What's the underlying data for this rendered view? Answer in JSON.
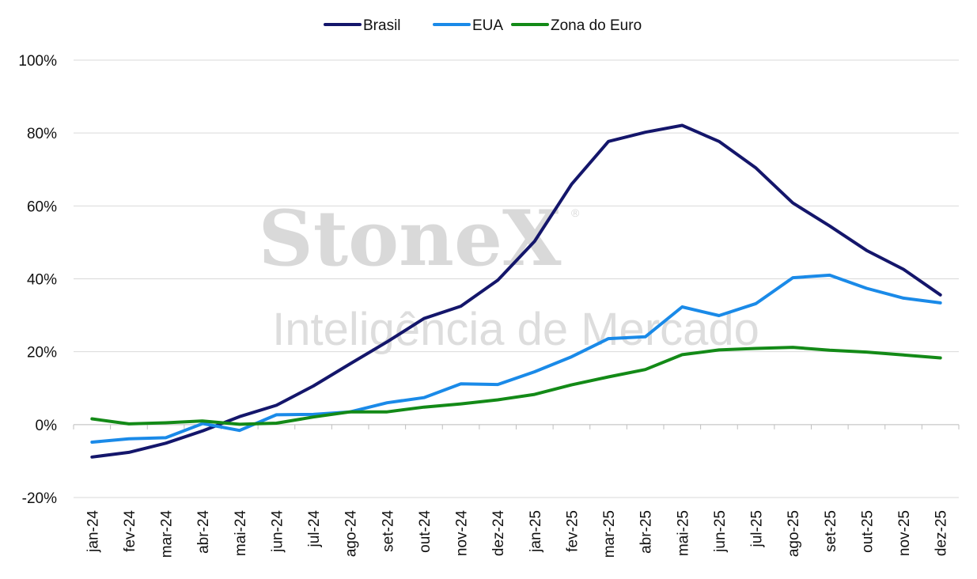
{
  "watermark": {
    "brand": "StoneX",
    "registered": "®",
    "tagline": "Inteligência de Mercado"
  },
  "chart_data": {
    "type": "line",
    "categories": [
      "jan-24",
      "fev-24",
      "mar-24",
      "abr-24",
      "mai-24",
      "jun-24",
      "jul-24",
      "ago-24",
      "set-24",
      "out-24",
      "nov-24",
      "dez-24",
      "jan-25",
      "fev-25",
      "mar-25",
      "abr-25",
      "mai-25",
      "jun-25",
      "jul-25",
      "ago-25",
      "set-25",
      "out-25",
      "nov-25",
      "dez-25"
    ],
    "series": [
      {
        "name": "Brasil",
        "color": "#14166b",
        "values": [
          -8.9,
          -7.6,
          -5.1,
          -1.7,
          2.2,
          5.3,
          10.6,
          16.7,
          22.7,
          29.1,
          32.5,
          39.6,
          50.3,
          65.9,
          77.7,
          80.2,
          82.1,
          77.7,
          70.4,
          60.8,
          54.5,
          47.8,
          42.6,
          35.6
        ]
      },
      {
        "name": "EUA",
        "color": "#1a8ae8",
        "values": [
          -4.8,
          -3.9,
          -3.6,
          0.3,
          -1.6,
          2.7,
          2.8,
          3.5,
          6.0,
          7.4,
          11.2,
          11.0,
          14.5,
          18.6,
          23.6,
          24.1,
          32.3,
          29.9,
          33.2,
          40.3,
          41.0,
          37.4,
          34.7,
          33.4
        ]
      },
      {
        "name": "Zona do Euro",
        "color": "#138a17",
        "values": [
          1.6,
          0.2,
          0.5,
          1.0,
          0.1,
          0.4,
          2.1,
          3.5,
          3.5,
          4.8,
          5.7,
          6.8,
          8.3,
          10.9,
          13.1,
          15.1,
          19.2,
          20.5,
          20.9,
          21.2,
          20.4,
          19.9,
          19.1,
          18.3
        ]
      }
    ],
    "yticks": [
      "100%",
      "80%",
      "60%",
      "40%",
      "20%",
      "0%",
      "-20%"
    ],
    "ylim": [
      -20,
      100
    ],
    "xlabel": "",
    "ylabel": "",
    "grid": true,
    "legend": "top-center"
  }
}
